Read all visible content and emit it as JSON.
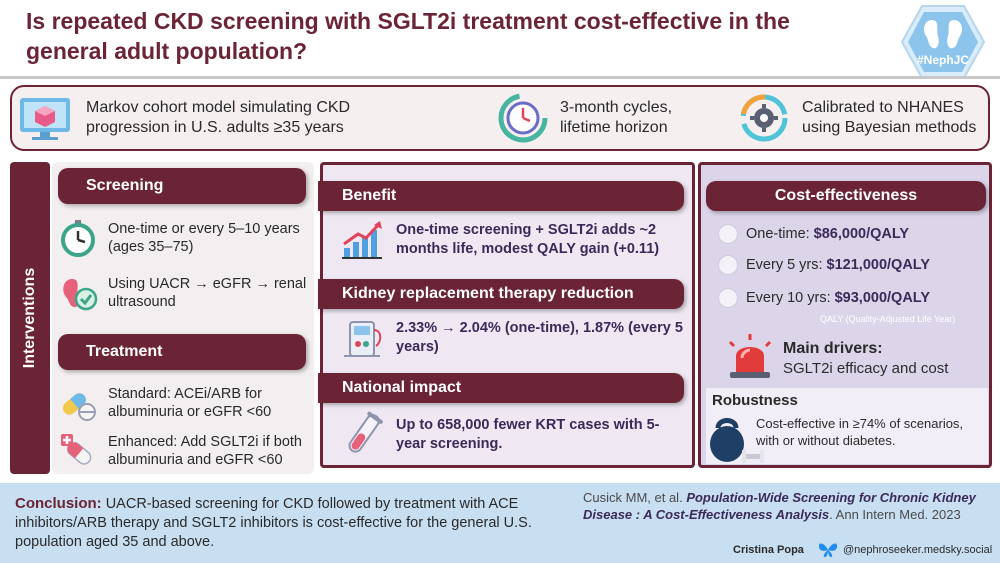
{
  "title": "Is repeated CKD screening with SGLT2i treatment cost-effective in the general adult population?",
  "badge": {
    "label": "#NephJC",
    "icon": "kidney-icon"
  },
  "top_bar": {
    "items": [
      {
        "text": "Markov cohort model simulating CKD progression in U.S. adults ≥35 years",
        "icon": "cube-screen-icon"
      },
      {
        "text": "3-month cycles, lifetime horizon",
        "icon": "cycle-clock-icon"
      },
      {
        "text": "Calibrated to NHANES using Bayesian methods",
        "icon": "gear-cycle-icon"
      }
    ]
  },
  "side_label": "Interventions",
  "screening": {
    "heading": "Screening",
    "items": [
      {
        "text": "One-time or every 5–10 years (ages 35–75)",
        "icon": "stopwatch-icon"
      },
      {
        "text": "Using UACR → eGFR → renal ultrasound",
        "icon": "kidney-check-icon"
      }
    ]
  },
  "treatment": {
    "heading": "Treatment",
    "items": [
      {
        "text": "Standard: ACEi/ARB for albuminuria or eGFR <60",
        "icon": "pills-icon"
      },
      {
        "text": "Enhanced: Add SGLT2i if both albuminuria and eGFR <60",
        "icon": "capsule-plus-icon"
      }
    ]
  },
  "benefit": {
    "heading": "Benefit",
    "text": "One-time screening + SGLT2i adds ~2 months life, modest QALY gain (+0.11)",
    "icon": "growth-chart-icon"
  },
  "krt": {
    "heading": "Kidney replacement therapy reduction",
    "text": "2.33% → 2.04% (one-time), 1.87% (every 5 years)",
    "icon": "dialysis-icon"
  },
  "national": {
    "heading": "National impact",
    "text": "Up to 658,000 fewer KRT cases with 5-year screening.",
    "icon": "test-tube-icon"
  },
  "cost": {
    "heading": "Cost-effectiveness",
    "rows": [
      {
        "label": "One-time:",
        "value": "$86,000/QALY"
      },
      {
        "label": "Every 5 yrs:",
        "value": "$121,000/QALY"
      },
      {
        "label": "Every 10 yrs:",
        "value": "$93,000/QALY"
      }
    ],
    "note": "QALY (Quality-Adjusted Life Year)",
    "drivers_heading": "Main drivers:",
    "drivers_text": "SGLT2i efficacy and cost"
  },
  "robustness": {
    "heading": "Robustness",
    "text": "Cost-effective in ≥74% of scenarios, with or without diabetes."
  },
  "conclusion": {
    "label": "Conclusion:",
    "text": "UACR-based screening for CKD followed by treatment with ACE inhibitors/ARB therapy and SGLT2 inhibitors is cost-effective for the general U.S. population aged 35 and above."
  },
  "citation": {
    "authors": "Cusick MM, et al.",
    "title": "Population-Wide Screening for Chronic Kidney Disease : A Cost-Effectiveness Analysis",
    "journal": ". Ann Intern Med. 2023"
  },
  "footer": {
    "author": "Cristina Popa",
    "handle": "@nephroseeker.medsky.social"
  },
  "colors": {
    "maroon": "#6b2435",
    "purple_text": "#3b2a58",
    "bottom_bg": "#c8dff2"
  }
}
